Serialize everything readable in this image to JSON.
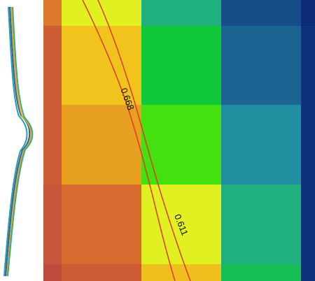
{
  "chart_data": {
    "type": "heatmap",
    "values": [
      [
        0.88,
        0.68,
        0.4,
        0.1,
        0.0
      ],
      [
        0.94,
        0.75,
        0.5,
        0.17,
        0.02
      ],
      [
        0.94,
        0.82,
        0.6,
        0.3,
        0.02
      ],
      [
        0.97,
        0.9,
        0.68,
        0.4,
        0.02
      ],
      [
        1.0,
        0.94,
        0.76,
        0.46,
        0.02
      ]
    ],
    "colorscale": [
      [
        0,
        "#0d2c78"
      ],
      [
        0.15,
        "#1a5e90"
      ],
      [
        0.3,
        "#2090a0"
      ],
      [
        0.4,
        "#20b080"
      ],
      [
        0.5,
        "#10c838"
      ],
      [
        0.6,
        "#44e010"
      ],
      [
        0.68,
        "#e0f020"
      ],
      [
        0.75,
        "#f0c41c"
      ],
      [
        0.82,
        "#e8a020"
      ],
      [
        0.9,
        "#d86a30"
      ],
      [
        1.0,
        "#c04a40"
      ]
    ],
    "contours": {
      "levels": [
        0.668,
        0.611
      ],
      "color": "#e03a2a"
    }
  }
}
